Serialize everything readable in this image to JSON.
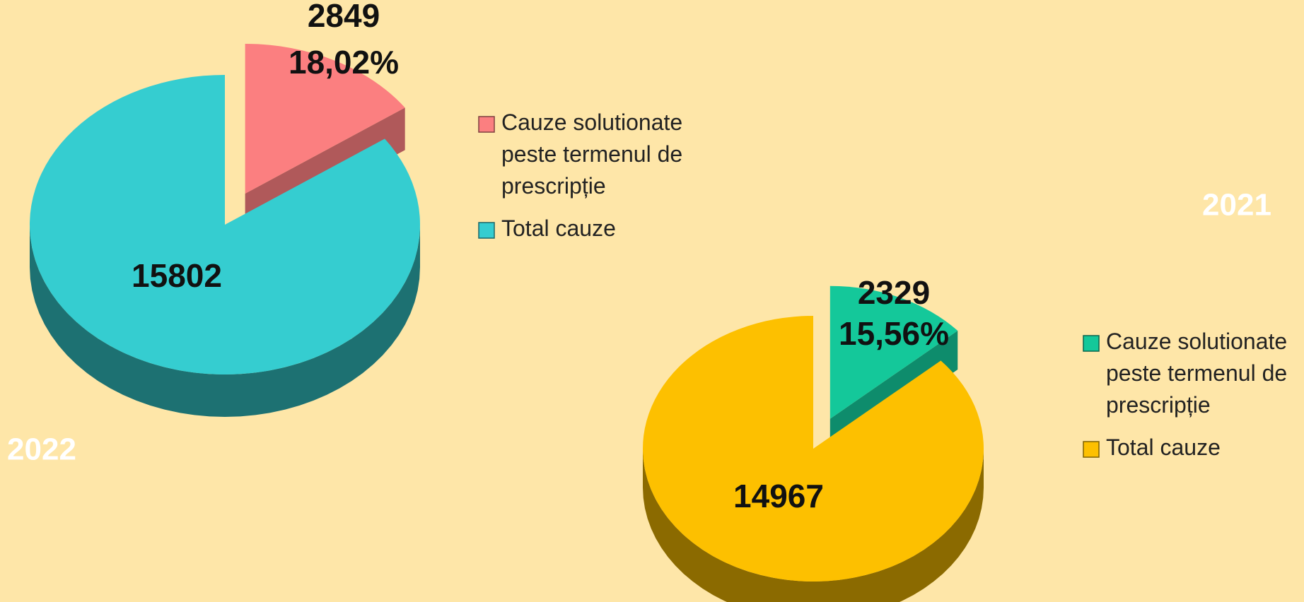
{
  "chart_data": [
    {
      "type": "pie",
      "title": "2022",
      "categories": [
        "Cauze solutionate peste termenul de prescripție",
        "Total cauze"
      ],
      "values": [
        2849,
        15802
      ],
      "colors": [
        "#fb7f80",
        "#35cdd0"
      ],
      "percent_label": "18,02%"
    },
    {
      "type": "pie",
      "title": "2021",
      "categories": [
        "Cauze solutionate peste termenul de prescripție",
        "Total cauze"
      ],
      "values": [
        2329,
        14967
      ],
      "colors": [
        "#14c89a",
        "#fdc000"
      ],
      "percent_label": "15,56%"
    }
  ]
}
